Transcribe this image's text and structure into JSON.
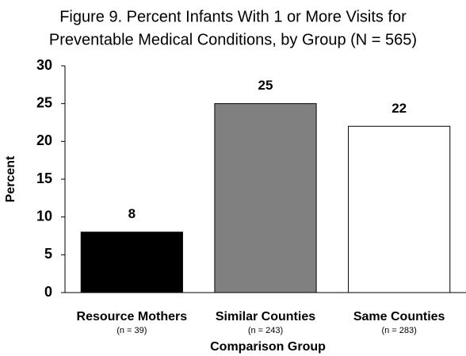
{
  "chart_data": {
    "type": "bar",
    "title": [
      "Figure 9. Percent Infants With 1 or More Visits for",
      "Preventable Medical Conditions, by Group (N = 565)"
    ],
    "categories": [
      "Resource Mothers",
      "Similar Counties",
      "Same Counties"
    ],
    "category_notes": [
      "(n = 39)",
      "(n = 243)",
      "(n = 283)"
    ],
    "values": [
      8,
      25,
      22
    ],
    "colors": [
      "#000000",
      "#808080",
      "#ffffff"
    ],
    "ylabel": "Percent",
    "xlabel": "Comparison Group",
    "ylim": [
      0,
      30
    ],
    "yticks": [
      0,
      5,
      10,
      15,
      20,
      25,
      30
    ],
    "grid": false
  }
}
